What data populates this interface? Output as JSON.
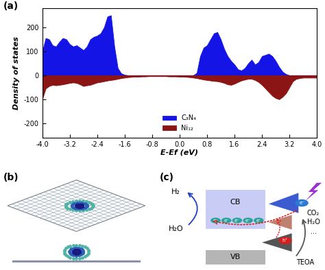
{
  "chart_data": {
    "type": "area",
    "panel_label": "(a)",
    "x_label": "E-Ef (eV)",
    "y_label": "Density of states",
    "x": [
      -4.0,
      -3.9,
      -3.8,
      -3.7,
      -3.6,
      -3.5,
      -3.4,
      -3.3,
      -3.2,
      -3.1,
      -3.0,
      -2.9,
      -2.8,
      -2.7,
      -2.6,
      -2.5,
      -2.4,
      -2.3,
      -2.2,
      -2.1,
      -2.0,
      -1.9,
      -1.8,
      -1.7,
      -1.6,
      -1.5,
      -1.4,
      -1.3,
      -1.2,
      -1.1,
      -1.0,
      -0.9,
      -0.8,
      -0.7,
      -0.6,
      -0.5,
      -0.4,
      -0.3,
      -0.2,
      -0.1,
      0.0,
      0.1,
      0.2,
      0.3,
      0.4,
      0.5,
      0.6,
      0.7,
      0.8,
      0.9,
      1.0,
      1.1,
      1.2,
      1.3,
      1.4,
      1.5,
      1.6,
      1.7,
      1.8,
      1.9,
      2.0,
      2.1,
      2.2,
      2.3,
      2.4,
      2.5,
      2.6,
      2.7,
      2.8,
      2.9,
      3.0,
      3.1,
      3.2,
      3.3,
      3.4,
      3.5,
      3.6,
      3.7,
      3.8,
      3.9,
      4.0
    ],
    "series": [
      {
        "name": "C₃N₄",
        "color": "#1414e6",
        "values": [
          100,
          155,
          150,
          125,
          120,
          140,
          155,
          150,
          130,
          120,
          125,
          115,
          105,
          120,
          150,
          160,
          165,
          175,
          200,
          245,
          250,
          120,
          30,
          8,
          2,
          0,
          0,
          0,
          0,
          0,
          0,
          0,
          0,
          0,
          0,
          0,
          0,
          0,
          0,
          0,
          0,
          0,
          0,
          0,
          0,
          10,
          80,
          115,
          125,
          150,
          175,
          180,
          150,
          110,
          80,
          60,
          45,
          25,
          20,
          30,
          50,
          65,
          45,
          55,
          80,
          85,
          90,
          80,
          60,
          35,
          15,
          5,
          0,
          0,
          0,
          0,
          0,
          0,
          0,
          0,
          0
        ]
      },
      {
        "name": "Ni₁₂",
        "color": "#8b1414",
        "values": [
          -100,
          -55,
          -45,
          -40,
          -42,
          -40,
          -38,
          -35,
          -32,
          -30,
          -32,
          -38,
          -45,
          -42,
          -40,
          -35,
          -30,
          -28,
          -25,
          -22,
          -20,
          -18,
          -15,
          -12,
          -10,
          -8,
          -7,
          -6,
          -6,
          -5,
          -5,
          -4,
          -4,
          -4,
          -4,
          -4,
          -4,
          -5,
          -5,
          -5,
          -6,
          -6,
          -7,
          -8,
          -10,
          -12,
          -15,
          -18,
          -20,
          -22,
          -24,
          -25,
          -28,
          -32,
          -38,
          -40,
          -35,
          -28,
          -22,
          -18,
          -15,
          -15,
          -20,
          -28,
          -40,
          -55,
          -70,
          -85,
          -95,
          -100,
          -90,
          -75,
          -50,
          -25,
          -15,
          -12,
          -10,
          -10,
          -10,
          -10,
          -10
        ]
      }
    ],
    "xlim": [
      -4.0,
      4.0
    ],
    "xticks": [
      -4.0,
      -3.2,
      -2.4,
      -1.6,
      -0.8,
      0.0,
      0.8,
      1.6,
      2.4,
      3.2,
      4.0
    ],
    "ylim": [
      -260,
      280
    ],
    "yticks": [
      -200,
      -100,
      0,
      100,
      200
    ],
    "legend": "lower center",
    "grid": false
  },
  "diagram": {
    "panel_b": {
      "label": "(b)"
    },
    "panel_c": {
      "label": "(c)",
      "cb": "CB",
      "vb": "VB",
      "h2": "H₂",
      "h2o_in": "H₂O",
      "electrons": [
        "e⁻",
        "e⁻",
        "e⁻",
        "e⁻",
        "e⁻",
        "e⁻"
      ],
      "hole": "h⁺",
      "sacrificial": "TEOA",
      "products": [
        "CO₂",
        "H₂O",
        "..."
      ]
    }
  }
}
